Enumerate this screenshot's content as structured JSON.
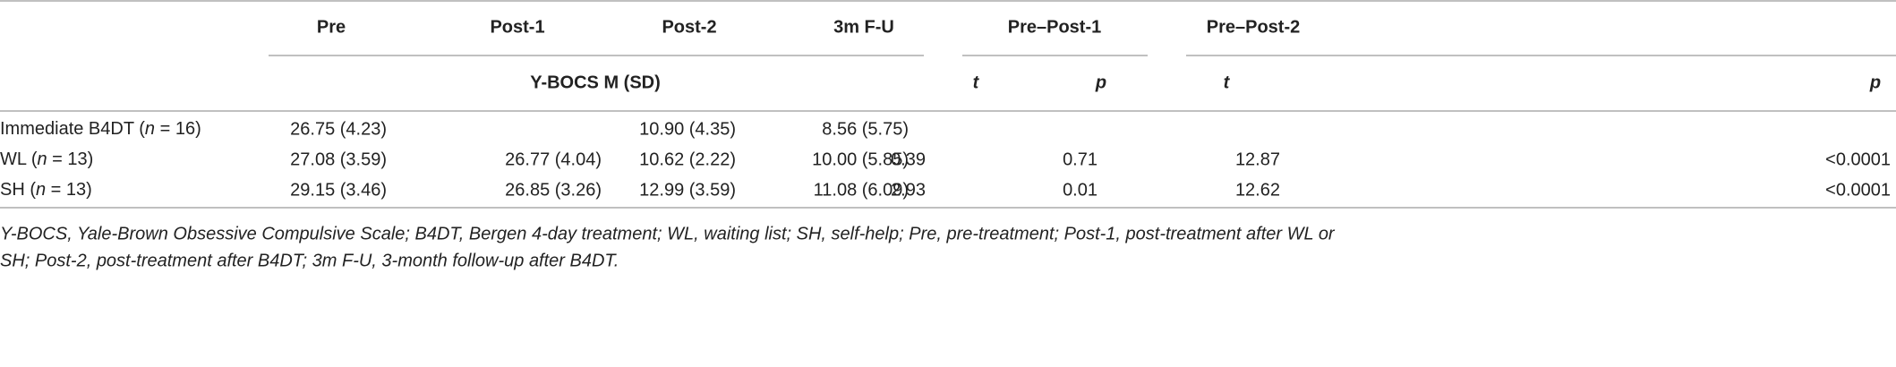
{
  "table": {
    "columns": [
      "Pre",
      "Post-1",
      "Post-2",
      "3m F-U",
      "Pre–Post-1",
      "Pre–Post-2"
    ],
    "subheaders": [
      "Y-BOCS M (SD)",
      "t",
      "p",
      "t",
      "p"
    ],
    "rows": [
      {
        "label": [
          "Immediate B4DT (",
          "n",
          " = 16)"
        ],
        "cells": [
          "26.75 (4.23)",
          null,
          "10.90 (4.35)",
          "8.56 (5.75)",
          null,
          null,
          null,
          null
        ]
      },
      {
        "label": [
          "WL (",
          "n",
          " = 13)"
        ],
        "cells": [
          "27.08 (3.59)",
          "26.77 (4.04)",
          "10.62 (2.22)",
          "10.00 (5.85)",
          "0.39",
          "0.71",
          "12.87",
          "<0.0001"
        ]
      },
      {
        "label": [
          "SH (",
          "n",
          " = 13)"
        ],
        "cells": [
          "29.15 (3.46)",
          "26.85 (3.26)",
          "12.99 (3.59)",
          "11.08 (6.09)",
          "2.93",
          "0.01",
          "12.62",
          "<0.0001"
        ]
      }
    ],
    "footnote": [
      "Y-BOCS, Yale-Brown Obsessive Compulsive Scale; B4DT, Bergen 4-day treatment; WL, waiting list; SH, self-help; Pre, pre-treatment; Post-1, post-treatment after WL or",
      "SH; Post-2, post-treatment after B4DT; 3m F-U, 3-month follow-up after B4DT."
    ]
  }
}
